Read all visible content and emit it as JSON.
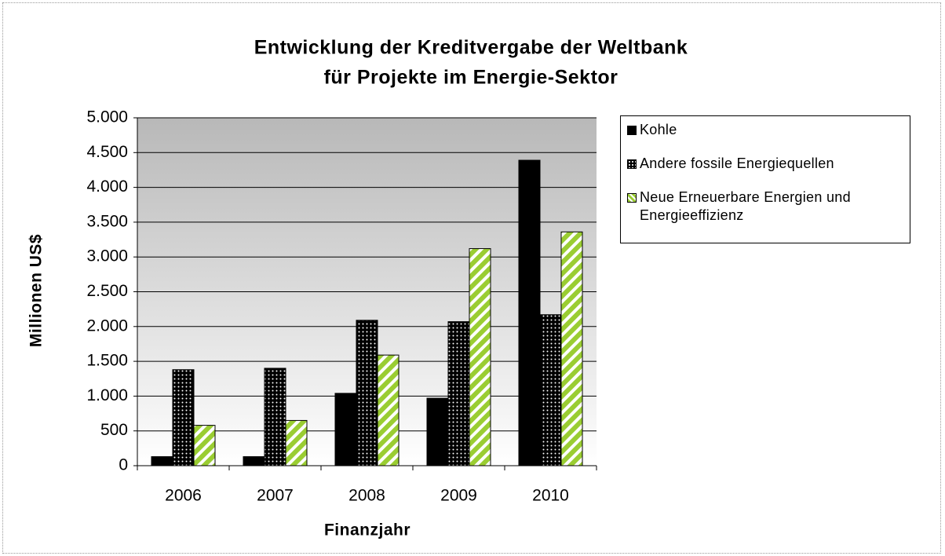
{
  "chart_data": {
    "type": "bar",
    "title": [
      "Entwicklung der Kreditvergabe der Weltbank",
      "für Projekte im Energie-Sektor"
    ],
    "xlabel": "Finanzjahr",
    "ylabel": "Millionen US$",
    "categories": [
      "2006",
      "2007",
      "2008",
      "2009",
      "2010"
    ],
    "series": [
      {
        "name": "Kohle",
        "color": "#000000",
        "pattern": "solid",
        "values": [
          130,
          130,
          1040,
          970,
          4390
        ]
      },
      {
        "name": "Andere fossile Energiequellen",
        "color": "#000000",
        "pattern": "dots",
        "values": [
          1380,
          1400,
          2090,
          2070,
          2170
        ]
      },
      {
        "name": "Neue Erneuerbare Energien und Energieeffizienz",
        "color": "#9acd32",
        "pattern": "stripes",
        "values": [
          580,
          650,
          1590,
          3120,
          3360
        ]
      }
    ],
    "ylim": [
      0,
      5000
    ],
    "yticks": [
      0,
      500,
      {
        "value": 1000,
        "label": "1.000"
      },
      {
        "value": 1500,
        "label": "1.500"
      },
      {
        "value": 2000,
        "label": "2.000"
      },
      {
        "value": 2500,
        "label": "2.500"
      },
      {
        "value": 3000,
        "label": "3.000"
      },
      {
        "value": 3500,
        "label": "3.500"
      },
      {
        "value": 4000,
        "label": "4.000"
      },
      {
        "value": 4500,
        "label": "4.500"
      },
      {
        "value": 5000,
        "label": "5.000"
      }
    ],
    "grid": true,
    "legend": "right"
  }
}
